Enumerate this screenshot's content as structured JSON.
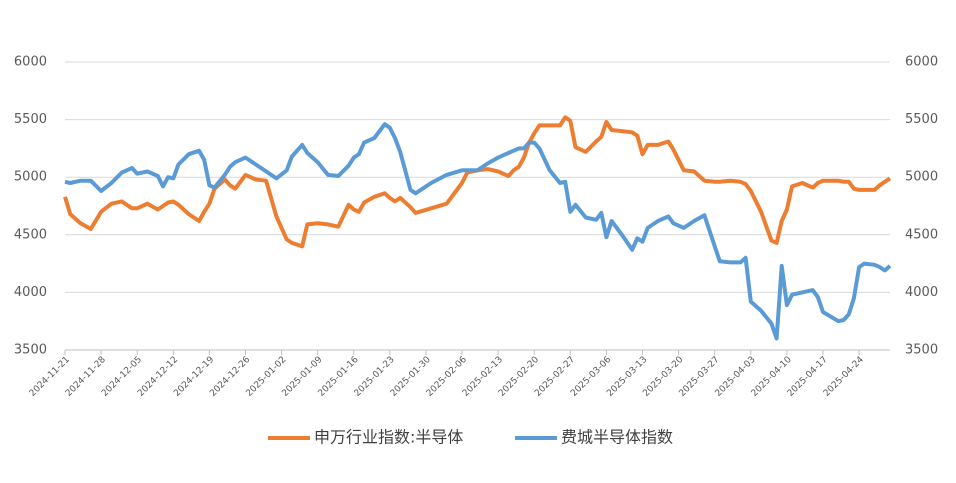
{
  "chart_data": {
    "type": "line",
    "x": [
      "2024-11-21",
      "2024-11-22",
      "2024-11-24",
      "2024-11-26",
      "2024-11-28",
      "2024-11-30",
      "2024-12-02",
      "2024-12-04",
      "2024-12-05",
      "2024-12-07",
      "2024-12-09",
      "2024-12-10",
      "2024-12-11",
      "2024-12-12",
      "2024-12-13",
      "2024-12-15",
      "2024-12-17",
      "2024-12-18",
      "2024-12-19",
      "2024-12-20",
      "2024-12-22",
      "2024-12-23",
      "2024-12-24",
      "2024-12-26",
      "2024-12-28",
      "2024-12-30",
      "2025-01-01",
      "2025-01-03",
      "2025-01-04",
      "2025-01-06",
      "2025-01-07",
      "2025-01-09",
      "2025-01-11",
      "2025-01-13",
      "2025-01-15",
      "2025-01-16",
      "2025-01-17",
      "2025-01-18",
      "2025-01-20",
      "2025-01-22",
      "2025-01-23",
      "2025-01-24",
      "2025-01-25",
      "2025-01-27",
      "2025-01-28",
      "2025-01-31",
      "2025-02-03",
      "2025-02-06",
      "2025-02-07",
      "2025-02-09",
      "2025-02-11",
      "2025-02-13",
      "2025-02-15",
      "2025-02-16",
      "2025-02-17",
      "2025-02-18",
      "2025-02-19",
      "2025-02-20",
      "2025-02-21",
      "2025-02-23",
      "2025-02-25",
      "2025-02-26",
      "2025-02-27",
      "2025-02-28",
      "2025-03-02",
      "2025-03-04",
      "2025-03-05",
      "2025-03-06",
      "2025-03-07",
      "2025-03-09",
      "2025-03-11",
      "2025-03-12",
      "2025-03-13",
      "2025-03-14",
      "2025-03-16",
      "2025-03-18",
      "2025-03-19",
      "2025-03-21",
      "2025-03-23",
      "2025-03-25",
      "2025-03-27",
      "2025-03-28",
      "2025-03-30",
      "2025-04-01",
      "2025-04-02",
      "2025-04-03",
      "2025-04-05",
      "2025-04-07",
      "2025-04-08",
      "2025-04-09",
      "2025-04-10",
      "2025-04-11",
      "2025-04-13",
      "2025-04-15",
      "2025-04-16",
      "2025-04-17",
      "2025-04-20",
      "2025-04-21",
      "2025-04-22",
      "2025-04-23",
      "2025-04-24",
      "2025-04-25",
      "2025-04-27",
      "2025-04-28",
      "2025-04-29",
      "2025-04-30"
    ],
    "series": [
      {
        "name": "申万行业指数:半导体",
        "color": "#ed7d31",
        "values": [
          4830,
          4680,
          4600,
          4550,
          4700,
          4770,
          4790,
          4730,
          4730,
          4770,
          4720,
          4750,
          4780,
          4790,
          4760,
          4680,
          4620,
          4700,
          4770,
          4900,
          4980,
          4930,
          4900,
          5020,
          4980,
          4970,
          4660,
          4460,
          4430,
          4400,
          4590,
          4600,
          4590,
          4570,
          4760,
          4720,
          4700,
          4780,
          4830,
          4860,
          4820,
          4790,
          4820,
          4740,
          4690,
          4730,
          4770,
          4950,
          5040,
          5060,
          5070,
          5050,
          5010,
          5060,
          5090,
          5170,
          5300,
          5380,
          5450,
          5450,
          5450,
          5520,
          5490,
          5260,
          5220,
          5310,
          5350,
          5480,
          5410,
          5400,
          5390,
          5360,
          5200,
          5280,
          5280,
          5310,
          5240,
          5060,
          5050,
          4970,
          4960,
          4960,
          4970,
          4960,
          4940,
          4880,
          4700,
          4450,
          4430,
          4620,
          4720,
          4920,
          4950,
          4910,
          4950,
          4970,
          4970,
          4960,
          4960,
          4900,
          4890,
          4890,
          4890,
          4930,
          4960,
          4990
        ]
      },
      {
        "name": "费城半导体指数",
        "color": "#5b9bd5",
        "axis": "y2",
        "values": [
          4960,
          4950,
          4970,
          4970,
          4880,
          4950,
          5040,
          5080,
          5030,
          5050,
          5010,
          4920,
          5000,
          4990,
          5110,
          5200,
          5230,
          5150,
          4930,
          4910,
          5020,
          5090,
          5130,
          5170,
          5110,
          5050,
          4990,
          5060,
          5180,
          5280,
          5210,
          5130,
          5020,
          5010,
          5100,
          5170,
          5200,
          5300,
          5340,
          5460,
          5430,
          5340,
          5220,
          4890,
          4860,
          4950,
          5020,
          5060,
          5060,
          5060,
          5120,
          5170,
          5210,
          5230,
          5250,
          5250,
          5300,
          5300,
          5250,
          5060,
          4950,
          4960,
          4700,
          4760,
          4650,
          4630,
          4690,
          4480,
          4620,
          4500,
          4370,
          4470,
          4440,
          4560,
          4620,
          4660,
          4600,
          4560,
          4620,
          4670,
          4400,
          4270,
          4260,
          4260,
          4300,
          3920,
          3840,
          3730,
          3600,
          4230,
          3890,
          3980,
          4000,
          4020,
          3960,
          3830,
          3750,
          3760,
          3810,
          3950,
          4220,
          4250,
          4240,
          4220,
          4190,
          4230
        ]
      }
    ],
    "xlim": [
      "2024-11-21",
      "2025-04-30"
    ],
    "xticks": [
      "2024-11-21",
      "2024-11-28",
      "2024-12-05",
      "2024-12-12",
      "2024-12-19",
      "2024-12-26",
      "2025-01-02",
      "2025-01-09",
      "2025-01-16",
      "2025-01-23",
      "2025-01-30",
      "2025-02-06",
      "2025-02-13",
      "2025-02-20",
      "2025-02-27",
      "2025-03-06",
      "2025-03-13",
      "2025-03-20",
      "2025-03-27",
      "2025-04-03",
      "2025-04-10",
      "2025-04-17",
      "2025-04-24"
    ],
    "ylim": [
      3500,
      6000
    ],
    "yticks": [
      3500,
      4000,
      4500,
      5000,
      5500,
      6000
    ],
    "y2lim": [
      3500,
      6000
    ],
    "y2ticks": [
      3500,
      4000,
      4500,
      5000,
      5500,
      6000
    ],
    "grid": true
  }
}
